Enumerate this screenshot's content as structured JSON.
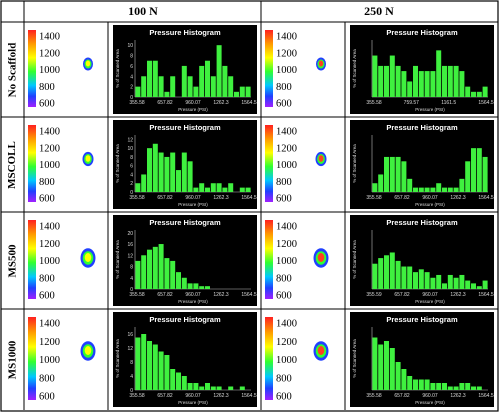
{
  "headers": {
    "col1": "100 N",
    "col2": "250 N"
  },
  "rows": [
    "No Scaffold",
    "MSCOLL",
    "MS500",
    "MS1000"
  ],
  "scale": {
    "ticks": [
      "1400",
      "1200",
      "1000",
      "800",
      "600"
    ]
  },
  "histogram": {
    "title": "Pressure Histogram",
    "xlabel": "Pressure (PSI)",
    "ylabel": "% of Scanned Area",
    "xticks": [
      "355.58",
      "657.82",
      "960.07",
      "1262.3",
      "1564.5"
    ]
  },
  "chart_data": [
    {
      "type": "bar",
      "row": "No Scaffold",
      "load": "100 N",
      "title": "Pressure Histogram",
      "xlabel": "Pressure (PSI)",
      "ylabel": "% of Scanned Area",
      "xticks": [
        "355.58",
        "657.82",
        "960.07",
        "1262.3",
        "1564.5"
      ],
      "yticks": [
        0,
        2,
        4,
        6,
        8,
        10
      ],
      "ylim": [
        0,
        11
      ],
      "values": [
        2,
        4,
        7,
        7,
        4,
        1,
        4,
        0,
        6,
        4,
        2,
        6,
        7,
        4,
        10,
        6,
        4,
        1,
        2,
        2
      ]
    },
    {
      "type": "bar",
      "row": "No Scaffold",
      "load": "250 N",
      "title": "Pressure Histogram",
      "xlabel": "Pressure (PSI)",
      "ylabel": "% of Scanned Area",
      "xticks": [
        "355.58",
        "759.57",
        "1161.5",
        "1564.5"
      ],
      "yticks": [],
      "ylim": [
        0,
        11
      ],
      "values": [
        8,
        6,
        6,
        8,
        6,
        5,
        3,
        6,
        5,
        5,
        5,
        9,
        6,
        6,
        6,
        5,
        2,
        1,
        1,
        2
      ]
    },
    {
      "type": "bar",
      "row": "MSCOLL",
      "load": "100 N",
      "title": "Pressure Histogram",
      "xlabel": "Pressure (PSI)",
      "ylabel": "% of Scanned Area",
      "xticks": [
        "355.58",
        "657.82",
        "960.07",
        "1262.3",
        "1564.5"
      ],
      "yticks": [
        0,
        2,
        4,
        6,
        8,
        10,
        12
      ],
      "ylim": [
        0,
        13
      ],
      "values": [
        2,
        4,
        10,
        11,
        9,
        8,
        9,
        5,
        9,
        7,
        1,
        2,
        1,
        2,
        2,
        1,
        2,
        0,
        1,
        1
      ]
    },
    {
      "type": "bar",
      "row": "MSCOLL",
      "load": "250 N",
      "title": "Pressure Histogram",
      "xlabel": "Pressure (PSI)",
      "ylabel": "% of Scanned Area",
      "xticks": [
        "355.58",
        "657.82",
        "960.07",
        "1262.3",
        "1564.5"
      ],
      "yticks": [],
      "ylim": [
        0,
        13
      ],
      "values": [
        2,
        4,
        8,
        8,
        8,
        7,
        3,
        1,
        1,
        1,
        1,
        2,
        1,
        1,
        1,
        3,
        7,
        10,
        10,
        8
      ]
    },
    {
      "type": "bar",
      "row": "MS500",
      "load": "100 N",
      "title": "Pressure Histogram",
      "xlabel": "Pressure (PSI)",
      "ylabel": "% of Scanned Area",
      "xticks": [
        "355.58",
        "657.82",
        "960.07",
        "1262.3",
        "1564.5"
      ],
      "yticks": [
        0,
        4,
        8,
        12,
        16,
        20
      ],
      "ylim": [
        0,
        21
      ],
      "values": [
        10,
        12,
        14,
        15,
        16,
        11,
        10,
        6,
        4,
        2,
        2,
        1,
        1,
        0,
        0,
        0,
        0,
        0,
        0,
        0
      ]
    },
    {
      "type": "bar",
      "row": "MS500",
      "load": "250 N",
      "title": "Pressure Histogram",
      "xlabel": "Pressure (PSI)",
      "ylabel": "% of Scanned Area",
      "xticks": [
        "355.59",
        "657.82",
        "960.07",
        "1262.3",
        "1564.5"
      ],
      "yticks": [],
      "ylim": [
        0,
        21
      ],
      "values": [
        9,
        11,
        12,
        13,
        10,
        8,
        8,
        6,
        7,
        6,
        4,
        5,
        2,
        5,
        4,
        5,
        3,
        2,
        1,
        3
      ]
    },
    {
      "type": "bar",
      "row": "MS1000",
      "load": "100 N",
      "title": "Pressure Histogram",
      "xlabel": "Pressure (PSI)",
      "ylabel": "% of Scanned Area",
      "xticks": [
        "355.58",
        "657.82",
        "960.07",
        "1262.3",
        "1564.5"
      ],
      "yticks": [
        0,
        4,
        8,
        12,
        16
      ],
      "ylim": [
        0,
        18
      ],
      "values": [
        15,
        16,
        14,
        13,
        11,
        10,
        6,
        5,
        4,
        2,
        2,
        1,
        2,
        1,
        1,
        0,
        1,
        0,
        1,
        0
      ]
    },
    {
      "type": "bar",
      "row": "MS1000",
      "load": "250 N",
      "title": "Pressure Histogram",
      "xlabel": "Pressure (PSI)",
      "ylabel": "% of Scanned Area",
      "xticks": [
        "355.58",
        "657.82",
        "960.07",
        "1262.3",
        "1564.5"
      ],
      "yticks": [],
      "ylim": [
        0,
        18
      ],
      "values": [
        15,
        13,
        14,
        12,
        8,
        6,
        4,
        3,
        3,
        3,
        2,
        2,
        2,
        1,
        1,
        2,
        2,
        1,
        1,
        0
      ]
    }
  ]
}
